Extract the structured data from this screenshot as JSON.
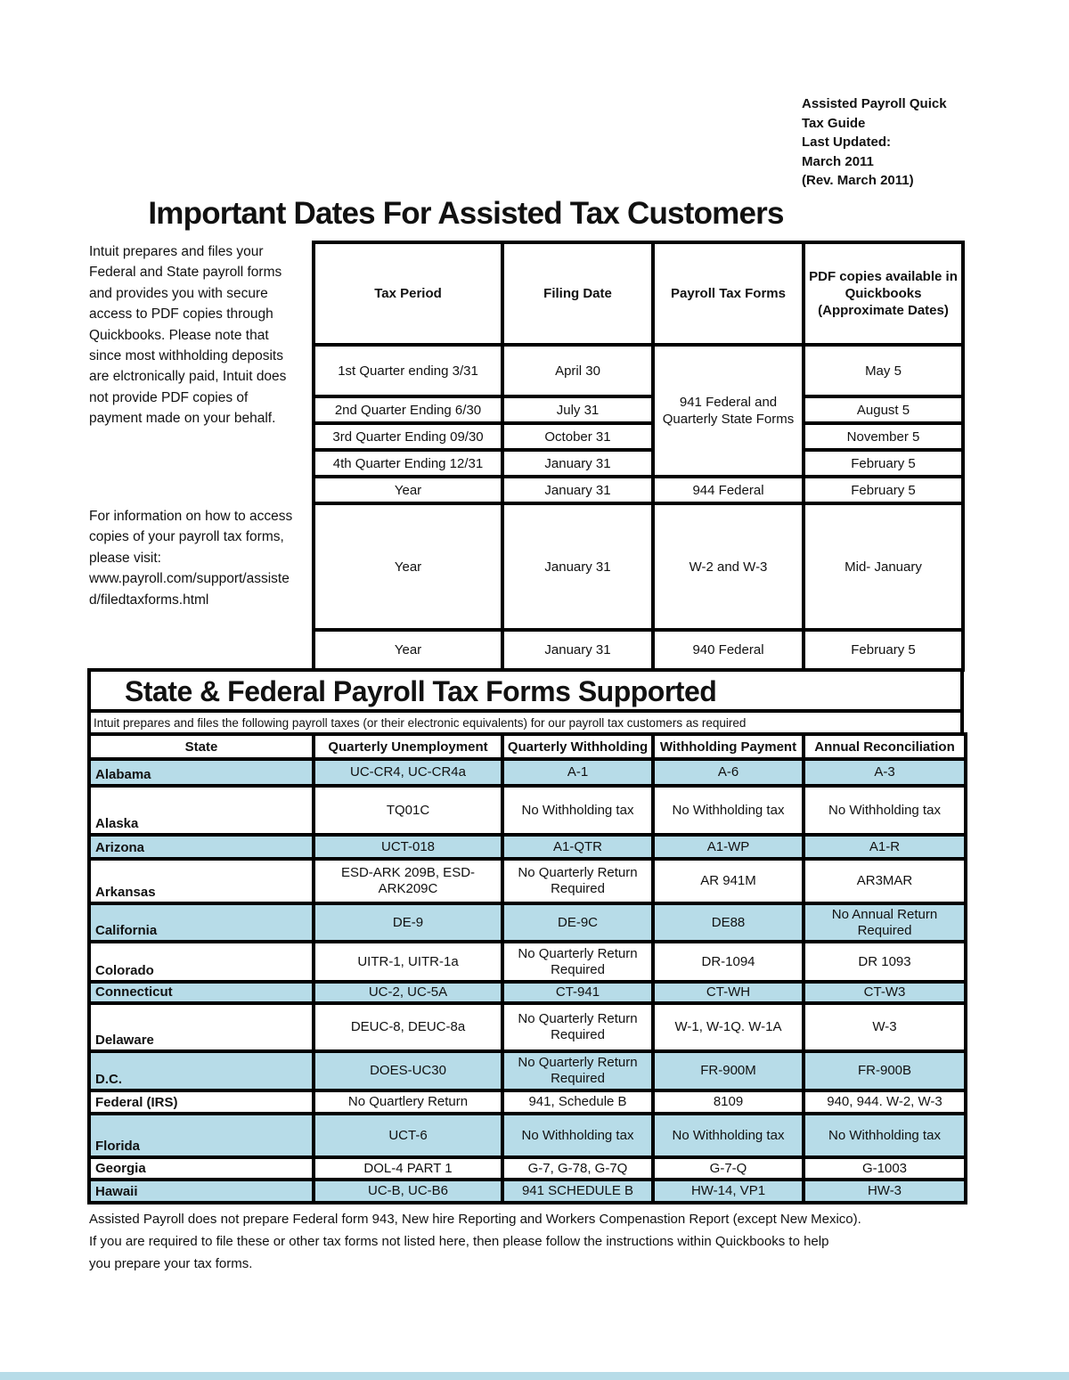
{
  "colors": {
    "row_highlight": "#b7dce8",
    "border": "#000000"
  },
  "doc_info": {
    "text": "Assisted Payroll Quick\nTax Guide\nLast Updated:\nMarch 2011\n(Rev. March 2011)"
  },
  "page_title": "Important Dates For Assisted Tax Customers",
  "sidebar": {
    "para1": "Intuit prepares and files your\nFederal and State payroll forms\nand provides you with secure\naccess to PDF copies through\nQuickbooks. Please note that\nsince most withholding deposits\nare elctronically paid, Intuit does\nnot provide PDF copies of\npayment made on your behalf.",
    "para2": "For information on how to access\ncopies of your payroll tax forms,\nplease visit:\nwww.payroll.com/support/assiste\nd/filedtaxforms.html"
  },
  "dates_table": {
    "headers": [
      "Tax Period",
      "Filing Date",
      "Payroll Tax Forms",
      "PDF copies available in\nQuickbooks\n(Approximate Dates)"
    ],
    "rows": [
      {
        "cells": [
          {
            "text": "1st Quarter ending 3/31"
          },
          {
            "text": "April 30"
          },
          {
            "text": "941 Federal and\nQuarterly State Forms",
            "rowspan": 4
          },
          {
            "text": "May 5"
          }
        ]
      },
      {
        "cells": [
          {
            "text": "2nd Quarter Ending 6/30"
          },
          {
            "text": "July 31"
          },
          {
            "text": "August 5"
          }
        ]
      },
      {
        "cells": [
          {
            "text": "3rd Quarter Ending 09/30"
          },
          {
            "text": "October 31"
          },
          {
            "text": "November 5"
          }
        ]
      },
      {
        "cells": [
          {
            "text": "4th Quarter Ending 12/31"
          },
          {
            "text": "January 31"
          },
          {
            "text": "February 5"
          }
        ]
      },
      {
        "cells": [
          {
            "text": "Year"
          },
          {
            "text": "January 31"
          },
          {
            "text": "944 Federal"
          },
          {
            "text": "February 5"
          }
        ]
      },
      {
        "cells": [
          {
            "text": "Year"
          },
          {
            "text": "January 31"
          },
          {
            "text": "W-2 and W-3"
          },
          {
            "text": "Mid- January"
          }
        ]
      },
      {
        "cells": [
          {
            "text": "Year"
          },
          {
            "text": "January 31"
          },
          {
            "text": "940 Federal"
          },
          {
            "text": "February 5"
          }
        ]
      }
    ]
  },
  "supported_section": {
    "title": "State & Federal Payroll Tax Forms Supported",
    "subtitle": "Intuit prepares and files the following payroll taxes (or their electronic equivalents) for our payroll tax customers as required",
    "headers": [
      "State",
      "Quarterly Unemployment",
      "Quarterly Withholding",
      "Withholding Payment",
      "Annual Reconciliation"
    ],
    "rows": [
      {
        "state": "Alabama",
        "highlight": true,
        "cells": [
          "UC-CR4, UC-CR4a",
          "A-1",
          "A-6",
          "A-3"
        ]
      },
      {
        "state": "Alaska",
        "highlight": false,
        "cells": [
          "TQ01C",
          "No Withholding tax",
          "No Withholding tax",
          "No Withholding tax"
        ]
      },
      {
        "state": "Arizona",
        "highlight": true,
        "cells": [
          "UCT-018",
          "A1-QTR",
          "A1-WP",
          "A1-R"
        ]
      },
      {
        "state": "Arkansas",
        "highlight": false,
        "cells": [
          "ESD-ARK 209B, ESD-\nARK209C",
          "No Quarterly Return\nRequired",
          "AR 941M",
          "AR3MAR"
        ]
      },
      {
        "state": "California",
        "highlight": true,
        "cells": [
          "DE-9",
          "DE-9C",
          "DE88",
          "No Annual Return\nRequired"
        ]
      },
      {
        "state": "Colorado",
        "highlight": false,
        "cells": [
          "UITR-1, UITR-1a",
          "No Quarterly Return\nRequired",
          "DR-1094",
          "DR 1093"
        ]
      },
      {
        "state": "Connecticut",
        "highlight": true,
        "cells": [
          "UC-2, UC-5A",
          "CT-941",
          "CT-WH",
          "CT-W3"
        ]
      },
      {
        "state": "Delaware",
        "highlight": false,
        "cells": [
          "DEUC-8, DEUC-8a",
          "No Quarterly Return\nRequired",
          "W-1, W-1Q. W-1A",
          "W-3"
        ]
      },
      {
        "state": "D.C.",
        "highlight": true,
        "cells": [
          "DOES-UC30",
          "No Quarterly Return\nRequired",
          "FR-900M",
          "FR-900B"
        ]
      },
      {
        "state": "Federal (IRS)",
        "highlight": false,
        "cells": [
          "No Quartlery Return",
          "941, Schedule B",
          "8109",
          "940, 944. W-2, W-3"
        ]
      },
      {
        "state": "Florida",
        "highlight": true,
        "cells": [
          "UCT-6",
          "No Withholding tax",
          "No Withholding tax",
          "No Withholding tax"
        ]
      },
      {
        "state": "Georgia",
        "highlight": false,
        "cells": [
          "DOL-4 PART 1",
          "G-7, G-78, G-7Q",
          "G-7-Q",
          "G-1003"
        ]
      },
      {
        "state": "Hawaii",
        "highlight": true,
        "cells": [
          "UC-B, UC-B6",
          "941 SCHEDULE B",
          "HW-14, VP1",
          "HW-3"
        ]
      }
    ]
  },
  "footer": {
    "text": "Assisted Payroll does not prepare Federal form 943, New hire Reporting and Workers Compenastion Report (except New Mexico).\nIf you are required to file these or other tax forms not listed here, then please follow the instructions within Quickbooks to help\nyou prepare your tax forms."
  }
}
